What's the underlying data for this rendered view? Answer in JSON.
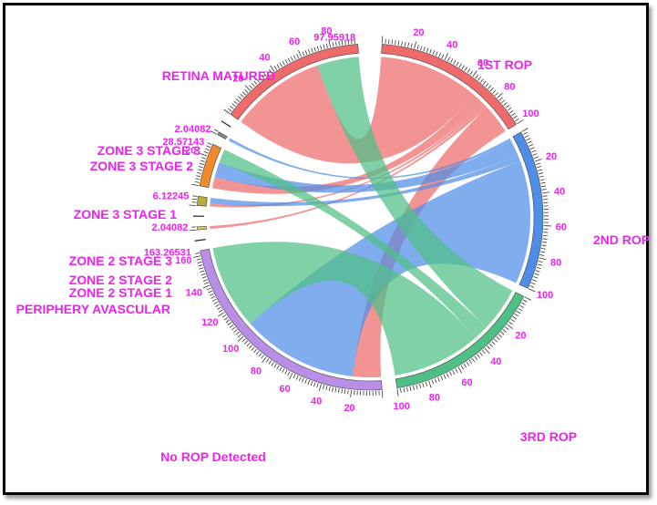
{
  "chart_data": {
    "type": "chord",
    "segments": [
      {
        "name": "1ST ROP",
        "total": 100,
        "color": "#ee6b6b",
        "group": "rop"
      },
      {
        "name": "2ND ROP",
        "total": 100,
        "color": "#4f8ee6",
        "group": "rop"
      },
      {
        "name": "3RD ROP",
        "total": 100,
        "color": "#4fbf86",
        "group": "rop"
      },
      {
        "name": "No ROP Detected",
        "total": 163.26531,
        "color": "#b98ee6",
        "group": "zone"
      },
      {
        "name": "PERIPHERY AVASCULAR",
        "total": 0,
        "color": "#cccccc",
        "group": "zone"
      },
      {
        "name": "ZONE 2 STAGE 1",
        "total": 2.04082,
        "color": "#d9c84a",
        "group": "zone"
      },
      {
        "name": "ZONE 2 STAGE 2",
        "total": 0,
        "color": "#cccccc",
        "group": "zone"
      },
      {
        "name": "ZONE 2 STAGE 3",
        "total": 6.12245,
        "color": "#b5ac3a",
        "group": "zone"
      },
      {
        "name": "ZONE 3 STAGE 1",
        "total": 28.57143,
        "color": "#f08a2c",
        "group": "zone"
      },
      {
        "name": "ZONE 3 STAGE 2",
        "total": 2.04082,
        "color": "#8a8a8a",
        "group": "zone"
      },
      {
        "name": "ZONE 3 STAGE 3",
        "total": 0,
        "color": "#cccccc",
        "group": "zone"
      },
      {
        "name": "RETINA MATURED",
        "total": 97.95918,
        "color": "#ee6b6b",
        "group": "zone"
      }
    ],
    "value_labels": [
      {
        "segment": "RETINA MATURED",
        "text": "97.95918"
      },
      {
        "segment": "ZONE 3 STAGE 2",
        "text": "2.04082"
      },
      {
        "segment": "ZONE 3 STAGE 1",
        "text": "28.57143"
      },
      {
        "segment": "ZONE 2 STAGE 3",
        "text": "6.12245"
      },
      {
        "segment": "ZONE 2 STAGE 1",
        "text": "2.04082"
      },
      {
        "segment": "No ROP Detected",
        "text": "163.26531"
      }
    ],
    "links": [
      {
        "source": "1ST ROP",
        "target": "RETINA MATURED",
        "value": 68
      },
      {
        "source": "1ST ROP",
        "target": "ZONE 3 STAGE 1",
        "value": 8
      },
      {
        "source": "1ST ROP",
        "target": "ZONE 2 STAGE 3",
        "value": 2
      },
      {
        "source": "1ST ROP",
        "target": "ZONE 2 STAGE 1",
        "value": 2
      },
      {
        "source": "1ST ROP",
        "target": "No ROP Detected",
        "value": 20
      },
      {
        "source": "2ND ROP",
        "target": "ZONE 3 STAGE 2",
        "value": 2.04082
      },
      {
        "source": "2ND ROP",
        "target": "ZONE 3 STAGE 1",
        "value": 10.57143
      },
      {
        "source": "2ND ROP",
        "target": "ZONE 2 STAGE 3",
        "value": 4.12245
      },
      {
        "source": "2ND ROP",
        "target": "No ROP Detected",
        "value": 83.2653
      },
      {
        "source": "3RD ROP",
        "target": "RETINA MATURED",
        "value": 29.95918
      },
      {
        "source": "3RD ROP",
        "target": "ZONE 3 STAGE 1",
        "value": 10
      },
      {
        "source": "3RD ROP",
        "target": "No ROP Detected",
        "value": 60.04082
      }
    ]
  }
}
